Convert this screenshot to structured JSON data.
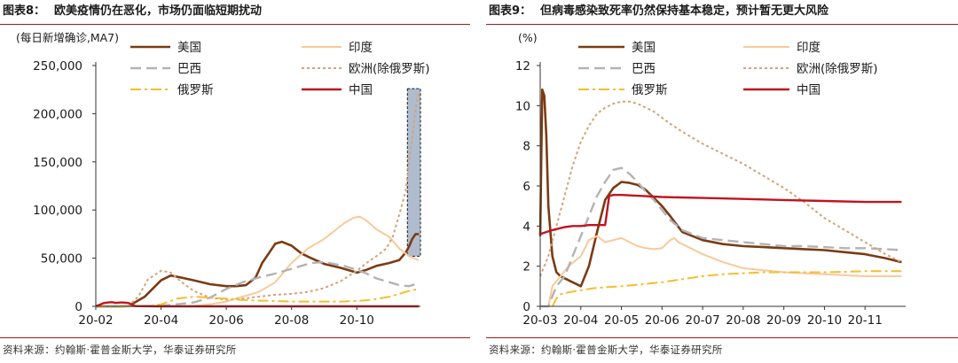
{
  "panels": [
    {
      "title_label": "图表8：",
      "title_text": "欧美疫情仍在恶化，市场仍面临短期扰动",
      "source": "资料来源：约翰斯·霍普金斯大学，华泰证券研究所"
    },
    {
      "title_label": "图表9：",
      "title_text": "但病毒感染致死率仍然保持基本稳定，预计暂无更大风险",
      "source": "资料来源：约翰斯·霍普金斯大学，华泰证券研究所"
    }
  ],
  "colors": {
    "us": "#7b3b12",
    "india": "#f9c99a",
    "brazil": "#b3b3b3",
    "europe": "#d4a27a",
    "russia": "#f5be2d",
    "china": "#c0141f",
    "highlight_fill": "#aebccd",
    "rule": "#a11a1a"
  },
  "chart_data": [
    {
      "type": "line",
      "unit_label": "(每日新增确诊,MA7)",
      "x_ticks": [
        "20-02",
        "20-04",
        "20-06",
        "20-08",
        "20-10"
      ],
      "y_ticks": [
        "0",
        "50,000",
        "100,000",
        "150,000",
        "200,000",
        "250,000"
      ],
      "ylim": [
        0,
        250000
      ],
      "legend_position": "top-right",
      "highlight_region": {
        "x_start": 9.55,
        "x_end": 9.95,
        "y_start": 52000,
        "y_end": 226000
      },
      "series": [
        {
          "key": "us",
          "name": "美国",
          "style": "solid",
          "x": [
            0,
            0.8,
            1,
            1.5,
            2,
            2.3,
            2.6,
            3,
            3.5,
            4,
            4.3,
            4.6,
            4.9,
            5.1,
            5.3,
            5.5,
            5.7,
            6,
            6.3,
            6.6,
            7,
            7.5,
            8,
            8.3,
            8.6,
            9,
            9.3,
            9.5,
            9.6,
            9.7,
            9.8,
            9.9
          ],
          "y": [
            0,
            0,
            300,
            10000,
            27000,
            32000,
            30000,
            27000,
            23000,
            21000,
            21000,
            22000,
            30000,
            45000,
            55000,
            65000,
            67000,
            63000,
            55000,
            50000,
            44000,
            40000,
            35000,
            38000,
            42000,
            45000,
            48000,
            56000,
            62000,
            70000,
            75000,
            75000
          ]
        },
        {
          "key": "india",
          "name": "印度",
          "style": "solid",
          "x": [
            0,
            3,
            3.5,
            4,
            4.5,
            5,
            5.5,
            6,
            6.5,
            7,
            7.3,
            7.6,
            7.9,
            8.1,
            8.3,
            8.6,
            9,
            9.3,
            9.6,
            9.9
          ],
          "y": [
            0,
            500,
            2000,
            5000,
            10000,
            15000,
            25000,
            45000,
            60000,
            70000,
            78000,
            86000,
            92000,
            93000,
            89000,
            80000,
            72000,
            60000,
            52000,
            48000
          ]
        },
        {
          "key": "brazil",
          "name": "巴西",
          "style": "dash",
          "x": [
            0,
            2,
            3,
            3.5,
            4,
            4.5,
            5,
            5.5,
            6,
            6.3,
            6.6,
            7,
            7.3,
            7.6,
            8,
            8.3,
            8.6,
            9,
            9.3,
            9.6,
            9.9
          ],
          "y": [
            0,
            500,
            4000,
            9000,
            18000,
            25000,
            30000,
            34000,
            39000,
            42000,
            45000,
            46000,
            44000,
            42000,
            38000,
            34000,
            29000,
            25000,
            22000,
            21000,
            24000
          ]
        },
        {
          "key": "europe",
          "name": "欧洲(除俄罗斯)",
          "style": "dot",
          "x": [
            0,
            0.8,
            1,
            1.3,
            1.6,
            2,
            2.3,
            2.6,
            3,
            3.5,
            4,
            4.5,
            5,
            5.5,
            6,
            6.5,
            7,
            7.5,
            8,
            8.3,
            8.6,
            8.9,
            9.1,
            9.3,
            9.5,
            9.6,
            9.7,
            9.8,
            9.9
          ],
          "y": [
            0,
            0,
            500,
            10000,
            28000,
            37000,
            35000,
            26000,
            16000,
            9000,
            7000,
            8000,
            10000,
            12000,
            13000,
            15000,
            19000,
            26000,
            37000,
            45000,
            52000,
            60000,
            72000,
            95000,
            120000,
            150000,
            175000,
            205000,
            222000
          ]
        },
        {
          "key": "russia",
          "name": "俄罗斯",
          "style": "dashdot",
          "x": [
            0,
            1.5,
            2,
            2.5,
            3,
            3.5,
            4,
            4.5,
            5,
            5.5,
            6,
            6.5,
            7,
            7.5,
            8,
            8.5,
            9,
            9.3,
            9.6,
            9.9
          ],
          "y": [
            0,
            0,
            2000,
            8000,
            10000,
            9000,
            8000,
            6500,
            6000,
            5500,
            5000,
            5000,
            5000,
            5000,
            5500,
            7000,
            10000,
            13000,
            16000,
            18000
          ]
        },
        {
          "key": "china",
          "name": "中国",
          "style": "solid",
          "x": [
            0,
            0.25,
            0.4,
            0.5,
            0.6,
            0.8,
            1,
            1.2,
            1.6,
            2,
            4,
            6,
            8,
            9.9
          ],
          "y": [
            0,
            3500,
            4000,
            4300,
            3600,
            4000,
            3500,
            300,
            100,
            0,
            0,
            0,
            0,
            0
          ]
        }
      ]
    },
    {
      "type": "line",
      "unit_label": "(%)",
      "x_ticks": [
        "20-03",
        "20-04",
        "20-05",
        "20-06",
        "20-07",
        "20-08",
        "20-09",
        "20-10",
        "20-11"
      ],
      "y_ticks": [
        "0",
        "2",
        "4",
        "6",
        "8",
        "10",
        "12"
      ],
      "ylim": [
        0,
        12
      ],
      "legend_position": "top",
      "series": [
        {
          "key": "us",
          "name": "美国",
          "style": "solid",
          "x": [
            0,
            0.05,
            0.1,
            0.15,
            0.2,
            0.3,
            0.4,
            0.5,
            0.6,
            0.8,
            1,
            1.2,
            1.4,
            1.6,
            1.8,
            2,
            2.2,
            2.4,
            2.6,
            2.8,
            3,
            3.2,
            3.5,
            4,
            4.5,
            5,
            5.5,
            6,
            6.5,
            7,
            7.5,
            8,
            8.5,
            8.9
          ],
          "y": [
            3.5,
            10.8,
            10.5,
            8.5,
            5,
            2.5,
            1.7,
            1.5,
            1.4,
            1.2,
            1,
            2,
            3.7,
            5.3,
            5.9,
            6.2,
            6.15,
            6.05,
            5.8,
            5.4,
            5,
            4.5,
            3.7,
            3.3,
            3.1,
            3,
            2.95,
            2.9,
            2.85,
            2.8,
            2.7,
            2.6,
            2.4,
            2.2
          ]
        },
        {
          "key": "india",
          "name": "印度",
          "style": "solid",
          "x": [
            0,
            0.1,
            0.2,
            0.3,
            0.5,
            0.7,
            1,
            1.2,
            1.4,
            1.6,
            1.8,
            2,
            2.2,
            2.4,
            2.6,
            2.8,
            3,
            3.2,
            3.3,
            3.4,
            3.6,
            3.8,
            4,
            4.5,
            5,
            5.5,
            6,
            6.5,
            7,
            7.5,
            8,
            8.5,
            8.9
          ],
          "y": [
            0,
            0,
            0,
            1,
            1.5,
            2,
            2.5,
            3.3,
            3.5,
            3.2,
            3.3,
            3.4,
            3.2,
            3,
            2.9,
            2.85,
            2.9,
            3.3,
            3.4,
            3.2,
            3,
            2.8,
            2.6,
            2.2,
            1.9,
            1.8,
            1.7,
            1.65,
            1.6,
            1.55,
            1.5,
            1.5,
            1.5
          ]
        },
        {
          "key": "brazil",
          "name": "巴西",
          "style": "dash",
          "x": [
            0,
            0.1,
            0.2,
            0.4,
            0.6,
            0.8,
            1,
            1.2,
            1.4,
            1.6,
            1.8,
            2,
            2.2,
            2.4,
            2.6,
            2.8,
            3,
            3.2,
            3.5,
            4,
            4.5,
            5,
            5.5,
            6,
            6.5,
            7,
            7.5,
            8,
            8.5,
            8.9
          ],
          "y": [
            0,
            0,
            0,
            1,
            1.5,
            2.5,
            3.5,
            4.5,
            5.5,
            6.2,
            6.8,
            6.9,
            6.6,
            6.2,
            5.7,
            5.3,
            4.8,
            4.3,
            3.8,
            3.4,
            3.3,
            3.2,
            3.1,
            3,
            3,
            2.95,
            2.9,
            2.9,
            2.85,
            2.8
          ]
        },
        {
          "key": "europe",
          "name": "欧洲(除俄罗斯)",
          "style": "dot",
          "x": [
            0,
            0.2,
            0.4,
            0.6,
            0.8,
            1,
            1.2,
            1.4,
            1.6,
            1.8,
            2,
            2.2,
            2.4,
            2.6,
            2.8,
            3,
            3.2,
            3.5,
            4,
            4.5,
            5,
            5.5,
            6,
            6.5,
            7,
            7.5,
            8,
            8.5,
            8.9
          ],
          "y": [
            1.5,
            2.5,
            4,
            5.5,
            7,
            8.2,
            9,
            9.6,
            9.9,
            10.1,
            10.2,
            10.2,
            10.1,
            9.9,
            9.7,
            9.4,
            9.1,
            8.7,
            8.1,
            7.6,
            7.1,
            6.5,
            5.9,
            5.2,
            4.4,
            3.8,
            3.2,
            2.6,
            2.2
          ]
        },
        {
          "key": "russia",
          "name": "俄罗斯",
          "style": "dashdot",
          "x": [
            0.3,
            0.4,
            0.5,
            0.7,
            1,
            1.3,
            1.6,
            2,
            2.5,
            3,
            3.5,
            4,
            4.5,
            5,
            5.5,
            6,
            6.5,
            7,
            7.5,
            8,
            8.5,
            8.9
          ],
          "y": [
            0,
            0.4,
            0.6,
            0.7,
            0.8,
            0.9,
            0.95,
            1,
            1.1,
            1.2,
            1.35,
            1.5,
            1.6,
            1.65,
            1.7,
            1.7,
            1.7,
            1.7,
            1.72,
            1.75,
            1.75,
            1.75
          ]
        },
        {
          "key": "china",
          "name": "中国",
          "style": "solid",
          "x": [
            0,
            0.3,
            0.6,
            0.8,
            1,
            1.2,
            1.4,
            1.6,
            1.7,
            1.8,
            2,
            2.5,
            3,
            4,
            5,
            6,
            7,
            8,
            8.9
          ],
          "y": [
            3.6,
            3.8,
            3.95,
            4,
            4,
            4.05,
            4.05,
            4.05,
            5.5,
            5.55,
            5.55,
            5.5,
            5.45,
            5.4,
            5.35,
            5.3,
            5.25,
            5.2,
            5.2
          ]
        }
      ]
    }
  ]
}
